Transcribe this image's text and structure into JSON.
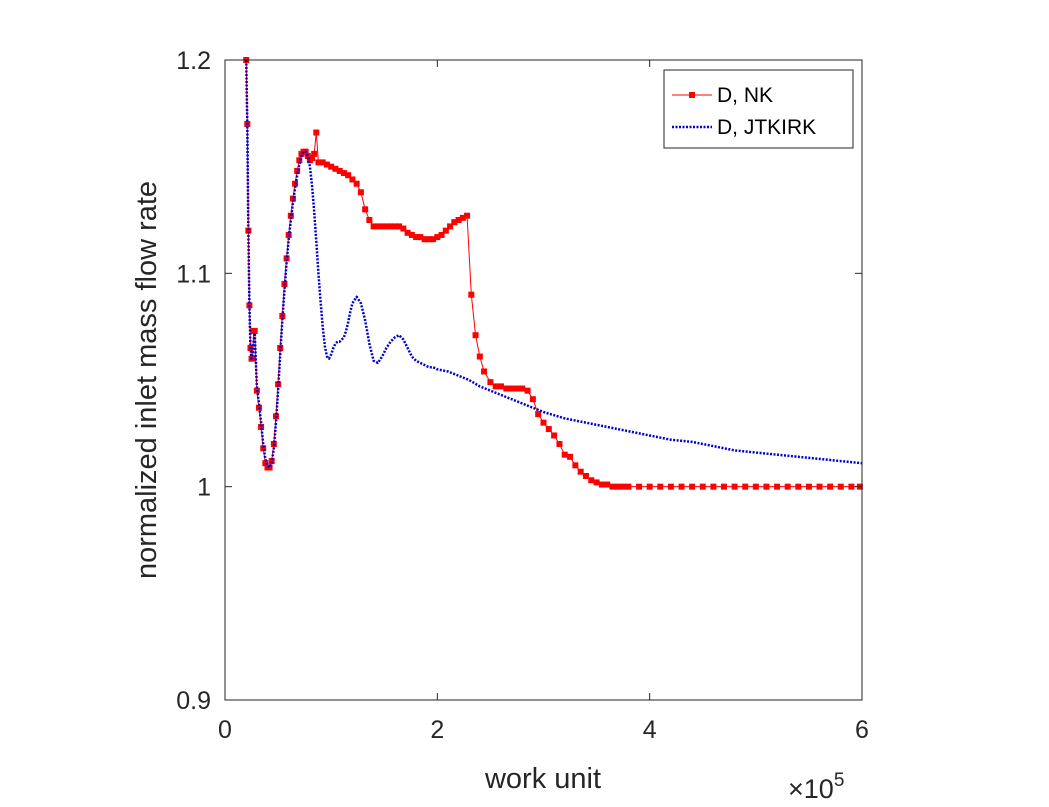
{
  "chart_data": {
    "type": "line",
    "title": "",
    "xlabel": "work unit",
    "ylabel": "normalized inlet mass flow rate",
    "x_exponent_label": {
      "base": "×10",
      "exp": "5"
    },
    "xlim": [
      0,
      600000
    ],
    "ylim": [
      0.9,
      1.2
    ],
    "xticks": [
      0,
      200000,
      400000,
      600000
    ],
    "xtick_labels": [
      "0",
      "2",
      "4",
      "6"
    ],
    "yticks": [
      0.9,
      1.0,
      1.1,
      1.2
    ],
    "ytick_labels": [
      "0.9",
      "1",
      "1.1",
      "1.2"
    ],
    "grid": "y",
    "gridlines_y": [
      1.0,
      1.1
    ],
    "legend_position": "top-right",
    "series": [
      {
        "name": "D, NK",
        "color": "#ff0000",
        "line_style": "solid",
        "marker": "square",
        "x": [
          20000,
          21000,
          22000,
          23000,
          24000,
          25000,
          26000,
          27000,
          28000,
          30000,
          32000,
          34000,
          36000,
          38000,
          40000,
          42000,
          44000,
          46000,
          48000,
          50000,
          52000,
          54000,
          56000,
          58000,
          60000,
          62000,
          64000,
          66000,
          68000,
          70000,
          72000,
          74000,
          76000,
          78000,
          80000,
          82000,
          84000,
          86000,
          88000,
          92000,
          96000,
          100000,
          104000,
          108000,
          112000,
          116000,
          120000,
          124000,
          128000,
          132000,
          136000,
          140000,
          144000,
          148000,
          152000,
          156000,
          160000,
          164000,
          168000,
          172000,
          176000,
          180000,
          184000,
          188000,
          192000,
          196000,
          200000,
          204000,
          208000,
          212000,
          216000,
          220000,
          224000,
          228000,
          232000,
          236000,
          240000,
          244000,
          250000,
          255000,
          260000,
          265000,
          270000,
          275000,
          280000,
          285000,
          290000,
          295000,
          300000,
          305000,
          310000,
          315000,
          320000,
          325000,
          330000,
          335000,
          340000,
          345000,
          350000,
          355000,
          360000,
          365000,
          370000,
          375000,
          380000,
          390000,
          400000,
          410000,
          420000,
          430000,
          440000,
          450000,
          460000,
          470000,
          480000,
          490000,
          500000,
          510000,
          520000,
          530000,
          540000,
          550000,
          560000,
          570000,
          580000,
          590000,
          598000
        ],
        "y": [
          1.2,
          1.17,
          1.12,
          1.085,
          1.065,
          1.06,
          1.06,
          1.073,
          1.073,
          1.045,
          1.037,
          1.028,
          1.018,
          1.011,
          1.009,
          1.009,
          1.012,
          1.02,
          1.033,
          1.048,
          1.065,
          1.08,
          1.095,
          1.107,
          1.118,
          1.127,
          1.135,
          1.142,
          1.148,
          1.153,
          1.156,
          1.157,
          1.157,
          1.155,
          1.153,
          1.154,
          1.156,
          1.166,
          1.152,
          1.152,
          1.151,
          1.15,
          1.149,
          1.148,
          1.147,
          1.146,
          1.144,
          1.142,
          1.138,
          1.13,
          1.125,
          1.122,
          1.122,
          1.122,
          1.122,
          1.122,
          1.122,
          1.122,
          1.121,
          1.119,
          1.118,
          1.117,
          1.117,
          1.116,
          1.116,
          1.116,
          1.117,
          1.118,
          1.12,
          1.122,
          1.124,
          1.125,
          1.126,
          1.127,
          1.09,
          1.071,
          1.061,
          1.054,
          1.049,
          1.047,
          1.047,
          1.046,
          1.046,
          1.046,
          1.046,
          1.045,
          1.041,
          1.034,
          1.03,
          1.027,
          1.024,
          1.02,
          1.015,
          1.014,
          1.01,
          1.007,
          1.005,
          1.003,
          1.002,
          1.001,
          1.001,
          1.0,
          1.0,
          1.0,
          1.0,
          1.0,
          1.0,
          1.0,
          1.0,
          1.0,
          1.0,
          1.0,
          1.0,
          1.0,
          1.0,
          1.0,
          1.0,
          1.0,
          1.0,
          1.0,
          1.0,
          1.0,
          1.0,
          1.0,
          1.0,
          1.0,
          1.0
        ]
      },
      {
        "name": "D, JTKIRK",
        "color": "#0000cc",
        "line_style": "dotted",
        "marker": "none",
        "x": [
          20000,
          21000,
          22000,
          23000,
          24000,
          25000,
          26000,
          27000,
          28000,
          30000,
          32000,
          34000,
          36000,
          38000,
          40000,
          42000,
          44000,
          46000,
          48000,
          50000,
          52000,
          54000,
          56000,
          58000,
          60000,
          62000,
          64000,
          66000,
          68000,
          70000,
          72000,
          74000,
          76000,
          78000,
          80000,
          82000,
          84000,
          86000,
          88000,
          90000,
          92000,
          94000,
          96000,
          98000,
          100000,
          102000,
          104000,
          106000,
          108000,
          110000,
          112000,
          114000,
          116000,
          118000,
          120000,
          124000,
          128000,
          132000,
          136000,
          140000,
          144000,
          148000,
          152000,
          156000,
          160000,
          164000,
          168000,
          172000,
          176000,
          180000,
          184000,
          188000,
          192000,
          196000,
          200000,
          210000,
          220000,
          230000,
          240000,
          250000,
          260000,
          270000,
          280000,
          290000,
          300000,
          320000,
          340000,
          360000,
          380000,
          400000,
          420000,
          440000,
          460000,
          480000,
          500000,
          520000,
          540000,
          560000,
          580000,
          600000
        ],
        "y": [
          1.2,
          1.17,
          1.12,
          1.085,
          1.065,
          1.06,
          1.062,
          1.068,
          1.072,
          1.047,
          1.039,
          1.03,
          1.02,
          1.013,
          1.01,
          1.009,
          1.011,
          1.018,
          1.03,
          1.045,
          1.062,
          1.078,
          1.092,
          1.105,
          1.116,
          1.125,
          1.133,
          1.14,
          1.146,
          1.151,
          1.155,
          1.157,
          1.157,
          1.155,
          1.15,
          1.141,
          1.129,
          1.115,
          1.1,
          1.087,
          1.075,
          1.066,
          1.061,
          1.06,
          1.062,
          1.065,
          1.067,
          1.068,
          1.068,
          1.069,
          1.07,
          1.073,
          1.077,
          1.082,
          1.086,
          1.089,
          1.086,
          1.078,
          1.067,
          1.059,
          1.058,
          1.061,
          1.065,
          1.068,
          1.07,
          1.071,
          1.069,
          1.065,
          1.061,
          1.059,
          1.058,
          1.057,
          1.056,
          1.056,
          1.055,
          1.054,
          1.052,
          1.05,
          1.047,
          1.045,
          1.043,
          1.041,
          1.039,
          1.037,
          1.035,
          1.032,
          1.03,
          1.028,
          1.026,
          1.024,
          1.022,
          1.021,
          1.019,
          1.017,
          1.016,
          1.015,
          1.014,
          1.013,
          1.012,
          1.011
        ]
      }
    ]
  }
}
